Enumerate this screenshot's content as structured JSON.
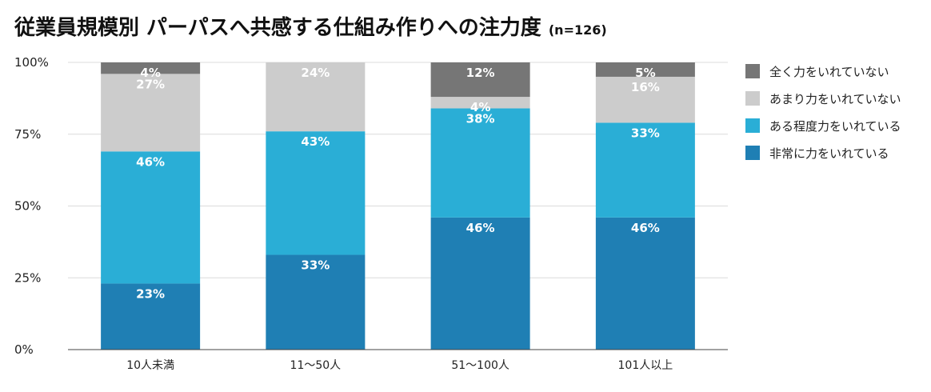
{
  "title": "従業員規模別 パーパスへ共感する仕組み作りへの注力度",
  "subtitle": "(n=126)",
  "chart_data": {
    "type": "bar",
    "stacked": true,
    "title": "従業員規模別 パーパスへ共感する仕組み作りへの注力度",
    "subtitle": "(n=126)",
    "xlabel": "",
    "ylabel": "",
    "ylim": [
      0,
      100
    ],
    "yticks": [
      "0%",
      "25%",
      "50%",
      "75%",
      "100%"
    ],
    "categories": [
      "10人未満",
      "11〜50人",
      "51〜100人",
      "101人以上"
    ],
    "legend_position": "right",
    "grid": true,
    "series": [
      {
        "name": "非常に力をいれている",
        "color": "#1f7fb4",
        "values": [
          23,
          33,
          46,
          46
        ],
        "labels": [
          "23%",
          "33%",
          "46%",
          "46%"
        ]
      },
      {
        "name": "ある程度力をいれている",
        "color": "#2aaed6",
        "values": [
          46,
          43,
          38,
          33
        ],
        "labels": [
          "46%",
          "43%",
          "38%",
          "33%"
        ]
      },
      {
        "name": "あまり力をいれていない",
        "color": "#cccccc",
        "values": [
          27,
          24,
          4,
          16
        ],
        "labels": [
          "27%",
          "24%",
          "4%",
          "16%"
        ]
      },
      {
        "name": "全く力をいれていない",
        "color": "#767676",
        "values": [
          4,
          0,
          12,
          5
        ],
        "labels": [
          "4%",
          "",
          "12%",
          "5%"
        ]
      }
    ],
    "legend_order": [
      "全く力をいれていない",
      "あまり力をいれていない",
      "ある程度力をいれている",
      "非常に力をいれている"
    ]
  }
}
